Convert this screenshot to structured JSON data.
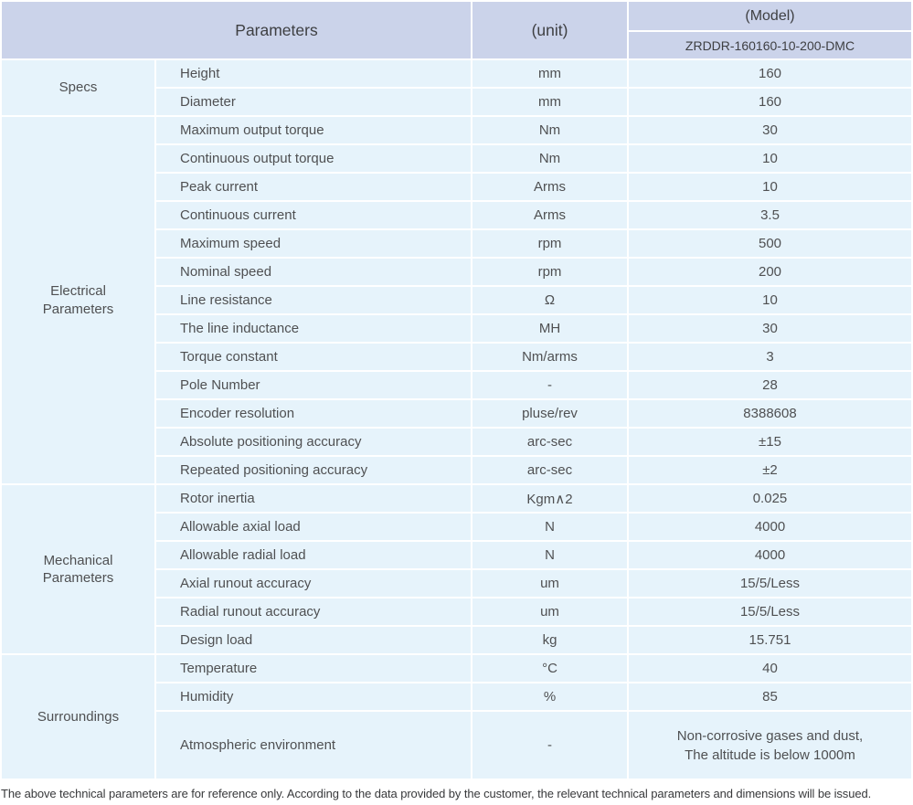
{
  "colors": {
    "header_bg": "#cbd3ea",
    "row_bg": "#e6f3fb",
    "separator": "#ffffff",
    "text": "#4f5052"
  },
  "header": {
    "parameters_label": "Parameters",
    "unit_label": "(unit)",
    "model_label": "(Model)",
    "model_number": "ZRDDR-160160-10-200-DMC"
  },
  "table": {
    "sections": [
      {
        "id": "specs",
        "group": "Specs",
        "rows": [
          {
            "param": "Height",
            "unit": "mm",
            "value": "160"
          },
          {
            "param": "Diameter",
            "unit": "mm",
            "value": "160"
          }
        ]
      },
      {
        "id": "electrical",
        "group": "Electrical\nParameters",
        "rows": [
          {
            "param": "Maximum output torque",
            "unit": "Nm",
            "value": "30"
          },
          {
            "param": "Continuous output torque",
            "unit": "Nm",
            "value": "10"
          },
          {
            "param": "Peak current",
            "unit": "Arms",
            "value": "10"
          },
          {
            "param": "Continuous current",
            "unit": "Arms",
            "value": "3.5"
          },
          {
            "param": "Maximum speed",
            "unit": "rpm",
            "value": "500"
          },
          {
            "param": "Nominal speed",
            "unit": "rpm",
            "value": "200"
          },
          {
            "param": "Line resistance",
            "unit": "Ω",
            "value": "10"
          },
          {
            "param": "The line inductance",
            "unit": "MH",
            "value": "30"
          },
          {
            "param": "Torque constant",
            "unit": "Nm/arms",
            "value": "3"
          },
          {
            "param": "Pole Number",
            "unit": "-",
            "value": "28"
          },
          {
            "param": "Encoder resolution",
            "unit": "pluse/rev",
            "value": "8388608"
          },
          {
            "param": "Absolute positioning accuracy",
            "unit": "arc-sec",
            "value": "±15"
          },
          {
            "param": "Repeated positioning accuracy",
            "unit": "arc-sec",
            "value": "±2"
          }
        ]
      },
      {
        "id": "mechanical",
        "group": "Mechanical\nParameters",
        "rows": [
          {
            "param": "Rotor inertia",
            "unit": "Kgm∧2",
            "value": "0.025"
          },
          {
            "param": "Allowable axial load",
            "unit": "N",
            "value": "4000"
          },
          {
            "param": "Allowable radial load",
            "unit": "N",
            "value": "4000"
          },
          {
            "param": "Axial runout accuracy",
            "unit": "um",
            "value": "15/5/Less"
          },
          {
            "param": "Radial runout accuracy",
            "unit": "um",
            "value": "15/5/Less"
          },
          {
            "param": "Design load",
            "unit": "kg",
            "value": "15.751"
          }
        ]
      },
      {
        "id": "surroundings",
        "group": "Surroundings",
        "rows": [
          {
            "param": "Temperature",
            "unit": "°C",
            "value": "40"
          },
          {
            "param": "Humidity",
            "unit": "%",
            "value": "85"
          },
          {
            "param": "Atmospheric environment",
            "unit": "-",
            "value": "Non-corrosive gases and dust,\nThe altitude is below 1000m",
            "tall": true
          }
        ]
      }
    ]
  },
  "footer": {
    "note": "The above technical parameters are for reference only. According to the data provided by the customer, the relevant technical parameters and dimensions will be issued."
  }
}
